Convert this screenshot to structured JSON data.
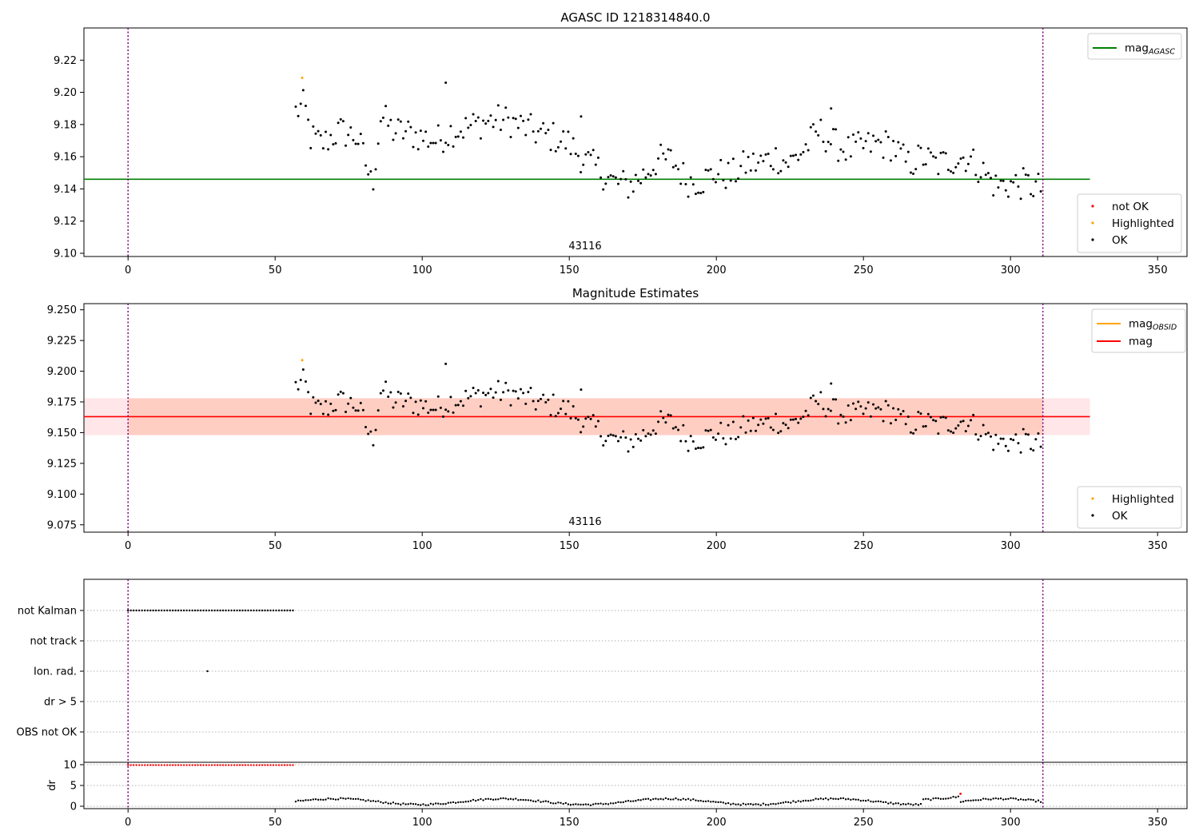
{
  "chart_data": [
    {
      "type": "scatter",
      "title": "AGASC ID 1218314840.0",
      "xlim": [
        -15,
        360
      ],
      "ylim": [
        9.098,
        9.24
      ],
      "x_ticks": [
        0,
        50,
        100,
        150,
        200,
        250,
        300,
        350
      ],
      "y_ticks": [
        "9.10",
        "9.12",
        "9.14",
        "9.16",
        "9.18",
        "9.20",
        "9.22"
      ],
      "annotation": "43116",
      "lines": [
        {
          "name": "mag_AGASC",
          "y": 9.146,
          "color": "#008000"
        }
      ],
      "legend_lines": [
        {
          "label": "mag",
          "sub": "AGASC",
          "color": "#008000"
        }
      ],
      "legend_markers": [
        {
          "label": "not OK",
          "color": "#ff0000"
        },
        {
          "label": "Highlighted",
          "color": "#ffa500"
        },
        {
          "label": "OK",
          "color": "#000000"
        }
      ],
      "highlighted_points": [
        [
          59.2,
          9.209
        ]
      ]
    },
    {
      "type": "scatter",
      "title": "Magnitude Estimates",
      "xlim": [
        -15,
        360
      ],
      "ylim": [
        9.069,
        9.255
      ],
      "x_ticks": [
        0,
        50,
        100,
        150,
        200,
        250,
        300,
        350
      ],
      "y_ticks": [
        "9.075",
        "9.100",
        "9.125",
        "9.150",
        "9.175",
        "9.200",
        "9.225",
        "9.250"
      ],
      "annotation": "43116",
      "lines": [
        {
          "name": "mag",
          "y": 9.163,
          "color": "#ff0000"
        }
      ],
      "bands": [
        {
          "y0": 9.148,
          "y1": 9.178,
          "color": "#ffb6c1"
        },
        {
          "y0": 9.148,
          "y1": 9.178,
          "color": "#ffa07a"
        }
      ],
      "legend_lines": [
        {
          "label": "mag",
          "sub": "OBSID",
          "color": "#ffa500"
        },
        {
          "label": "mag",
          "sub": "",
          "color": "#ff0000"
        }
      ],
      "legend_markers": [
        {
          "label": "Highlighted",
          "color": "#ffa500"
        },
        {
          "label": "OK",
          "color": "#000000"
        }
      ],
      "highlighted_points": [
        [
          59.2,
          9.209
        ]
      ]
    },
    {
      "type": "scatter",
      "title": "",
      "categories": [
        "not Kalman",
        "not track",
        "Ion. rad.",
        "dr > 5",
        "OBS not OK"
      ],
      "flag_points": {
        "not Kalman": [
          0,
          56.5
        ],
        "Ion. rad.": [
          27
        ]
      }
    },
    {
      "type": "scatter",
      "title": "",
      "ylabel": "dr",
      "y_ticks": [
        "0",
        "5",
        "10"
      ],
      "x_ticks": [
        0,
        50,
        100,
        150,
        200,
        250,
        300,
        350
      ],
      "dr_red_value": 9.9,
      "dr_red_range": [
        0,
        56.5
      ],
      "highlighted_points": [
        [
          283,
          3.0
        ]
      ]
    }
  ],
  "markers": {
    "vlines_x": [
      0,
      311
    ],
    "vline_color": "#800080"
  }
}
